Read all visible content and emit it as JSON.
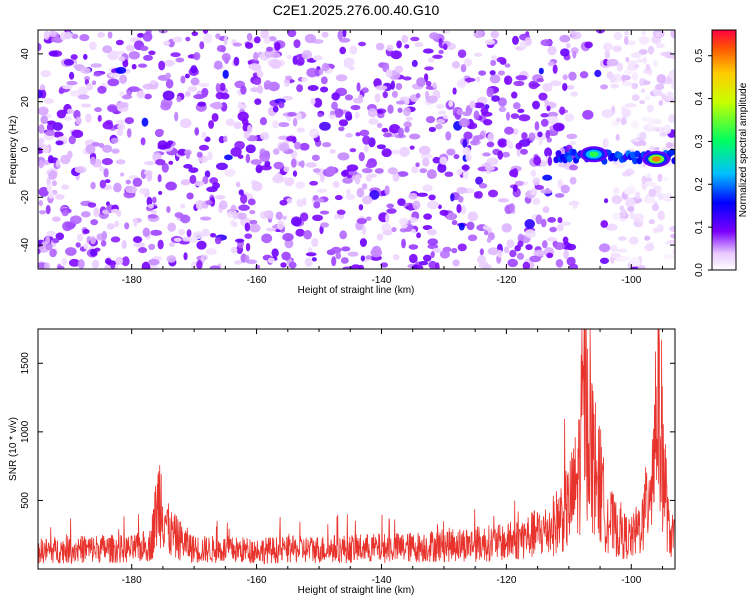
{
  "chart_data": [
    {
      "type": "heatmap",
      "title": "C2E1.2025.276.00.40.G10",
      "xlabel": "Height of straight line (km)",
      "ylabel": "Frequency (Hz)",
      "xlim": [
        -195,
        -93
      ],
      "ylim": [
        -50,
        50
      ],
      "xticks": [
        -180,
        -160,
        -140,
        -120,
        -100
      ],
      "yticks": [
        -40,
        -20,
        0,
        20,
        40
      ],
      "colorbar": {
        "label": "Normalized spectral amplitude",
        "range": [
          0.0,
          0.56
        ],
        "ticks": [
          "0.0",
          "0.1",
          "0.2",
          "0.3",
          "0.4",
          "0.5"
        ],
        "colormap": "rainbow (white-violet-blue-cyan-green-yellow-red)"
      },
      "features": [
        {
          "description": "noise speckle",
          "x_range": [
            -195,
            -108
          ],
          "y_range": [
            -50,
            50
          ],
          "amplitude": 0.08
        },
        {
          "description": "signal track near 0 Hz",
          "x_range": [
            -112,
            -93
          ],
          "y_center": -3,
          "amplitude_peak": 0.5
        },
        {
          "description": "bright blob",
          "x": -106,
          "y": -2,
          "amplitude": 0.32
        },
        {
          "description": "bright blob",
          "x": -96,
          "y": -4,
          "amplitude": 0.5
        }
      ]
    },
    {
      "type": "line",
      "title": "",
      "xlabel": "Height of straight line (km)",
      "ylabel": "SNR (10 * v/v)",
      "xlim": [
        -195,
        -93
      ],
      "ylim": [
        0,
        1750
      ],
      "xticks": [
        -180,
        -160,
        -140,
        -120,
        -100
      ],
      "yticks": [
        500,
        1000,
        1500
      ],
      "line_color": "#e8332d",
      "series": [
        {
          "name": "SNR",
          "x": [
            -195,
            -190,
            -185,
            -180,
            -177,
            -175.5,
            -174,
            -170,
            -165,
            -160,
            -155,
            -150,
            -145,
            -140,
            -135,
            -130,
            -125,
            -120,
            -116,
            -113,
            -110,
            -108.5,
            -107.3,
            -107,
            -106,
            -104,
            -102,
            -100,
            -98,
            -96.5,
            -95.7,
            -95,
            -94,
            -93
          ],
          "values": [
            150,
            160,
            170,
            165,
            200,
            620,
            300,
            165,
            160,
            155,
            160,
            165,
            170,
            175,
            180,
            200,
            210,
            220,
            280,
            330,
            520,
            740,
            1700,
            1250,
            900,
            450,
            300,
            250,
            400,
            900,
            1600,
            1000,
            300,
            250
          ]
        }
      ]
    }
  ]
}
